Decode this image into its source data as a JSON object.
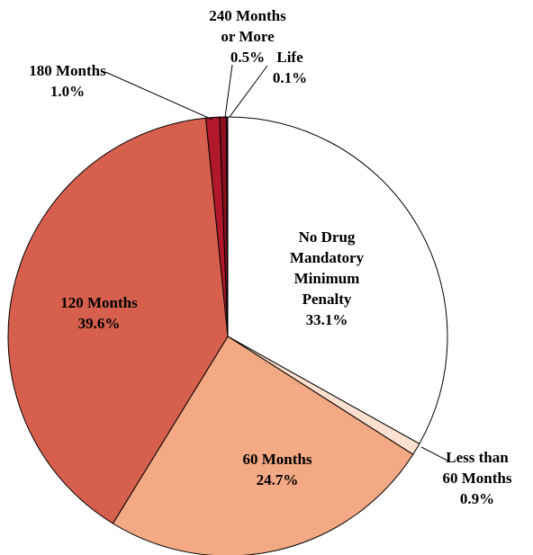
{
  "chart_data": {
    "type": "pie",
    "categories": [
      "No Drug Mandatory Minimum Penalty",
      "Less than 60 Months",
      "60 Months",
      "120 Months",
      "180 Months",
      "240 Months or More",
      "Life"
    ],
    "values": [
      33.1,
      0.9,
      24.7,
      39.6,
      1.0,
      0.5,
      0.1
    ],
    "value_labels": [
      "33.1%",
      "0.9%",
      "24.7%",
      "39.6%",
      "1.0%",
      "0.5%",
      "0.1%"
    ],
    "colors": [
      "#ffffff",
      "#fde0d0",
      "#f3a983",
      "#d6604d",
      "#b2182b",
      "#8b0f1f",
      "#5c0015"
    ]
  }
}
